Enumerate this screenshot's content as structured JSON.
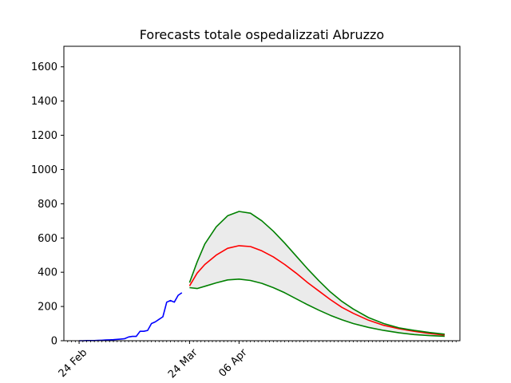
{
  "chart_data": {
    "type": "line",
    "title": "Forecasts totale ospedalizzati Abruzzo",
    "xlabel": "",
    "ylabel": "",
    "ylim": [
      0,
      1720
    ],
    "yticks": [
      0,
      200,
      400,
      600,
      800,
      1000,
      1200,
      1400,
      1600
    ],
    "x_axis": "date",
    "xlim": [
      "2020-02-20",
      "2020-06-03"
    ],
    "xtick_labels": [
      {
        "date": "2020-02-24",
        "label": "24 Feb"
      },
      {
        "date": "2020-03-24",
        "label": "24 Mar"
      },
      {
        "date": "2020-04-06",
        "label": "06 Apr"
      }
    ],
    "minor_ticks": "daily",
    "grid": false,
    "fill_between": {
      "lower": "lower bound",
      "upper": "upper bound",
      "color": "#ebebeb"
    },
    "series": [
      {
        "role": "observed",
        "color": "#0000ff",
        "x": [
          "2020-02-24",
          "2020-02-25",
          "2020-02-26",
          "2020-02-27",
          "2020-02-28",
          "2020-02-29",
          "2020-03-01",
          "2020-03-02",
          "2020-03-03",
          "2020-03-04",
          "2020-03-05",
          "2020-03-06",
          "2020-03-07",
          "2020-03-08",
          "2020-03-09",
          "2020-03-10",
          "2020-03-11",
          "2020-03-12",
          "2020-03-13",
          "2020-03-14",
          "2020-03-15",
          "2020-03-16",
          "2020-03-17",
          "2020-03-18",
          "2020-03-19",
          "2020-03-20",
          "2020-03-21",
          "2020-03-22"
        ],
        "values": [
          0,
          0,
          1,
          1,
          1,
          2,
          3,
          4,
          5,
          6,
          8,
          10,
          12,
          22,
          25,
          25,
          55,
          55,
          60,
          100,
          110,
          125,
          140,
          225,
          235,
          225,
          265,
          280
        ]
      },
      {
        "role": "forecast",
        "color": "#ff0000",
        "x": [
          "2020-03-24",
          "2020-03-26",
          "2020-03-28",
          "2020-03-31",
          "2020-04-03",
          "2020-04-06",
          "2020-04-09",
          "2020-04-12",
          "2020-04-15",
          "2020-04-18",
          "2020-04-21",
          "2020-04-24",
          "2020-04-27",
          "2020-04-30",
          "2020-05-03",
          "2020-05-06",
          "2020-05-10",
          "2020-05-14",
          "2020-05-18",
          "2020-05-22",
          "2020-05-26",
          "2020-05-30"
        ],
        "values": [
          320,
          395,
          445,
          500,
          540,
          555,
          550,
          525,
          490,
          445,
          395,
          340,
          290,
          240,
          195,
          160,
          120,
          90,
          70,
          55,
          42,
          33
        ]
      },
      {
        "role": "upper bound",
        "color": "#008000",
        "x": [
          "2020-03-24",
          "2020-03-26",
          "2020-03-28",
          "2020-03-31",
          "2020-04-03",
          "2020-04-06",
          "2020-04-09",
          "2020-04-12",
          "2020-04-15",
          "2020-04-18",
          "2020-04-21",
          "2020-04-24",
          "2020-04-27",
          "2020-04-30",
          "2020-05-03",
          "2020-05-06",
          "2020-05-10",
          "2020-05-14",
          "2020-05-18",
          "2020-05-22",
          "2020-05-26",
          "2020-05-30"
        ],
        "values": [
          340,
          460,
          565,
          665,
          730,
          755,
          745,
          700,
          640,
          570,
          495,
          420,
          350,
          285,
          230,
          185,
          135,
          100,
          75,
          60,
          48,
          38
        ]
      },
      {
        "role": "lower bound",
        "color": "#008000",
        "x": [
          "2020-03-24",
          "2020-03-26",
          "2020-03-28",
          "2020-03-31",
          "2020-04-03",
          "2020-04-06",
          "2020-04-09",
          "2020-04-12",
          "2020-04-15",
          "2020-04-18",
          "2020-04-21",
          "2020-04-24",
          "2020-04-27",
          "2020-04-30",
          "2020-05-03",
          "2020-05-06",
          "2020-05-10",
          "2020-05-14",
          "2020-05-18",
          "2020-05-22",
          "2020-05-26",
          "2020-05-30"
        ],
        "values": [
          310,
          305,
          318,
          338,
          355,
          360,
          352,
          335,
          310,
          280,
          245,
          210,
          178,
          148,
          122,
          100,
          78,
          60,
          46,
          36,
          30,
          26
        ]
      }
    ]
  }
}
